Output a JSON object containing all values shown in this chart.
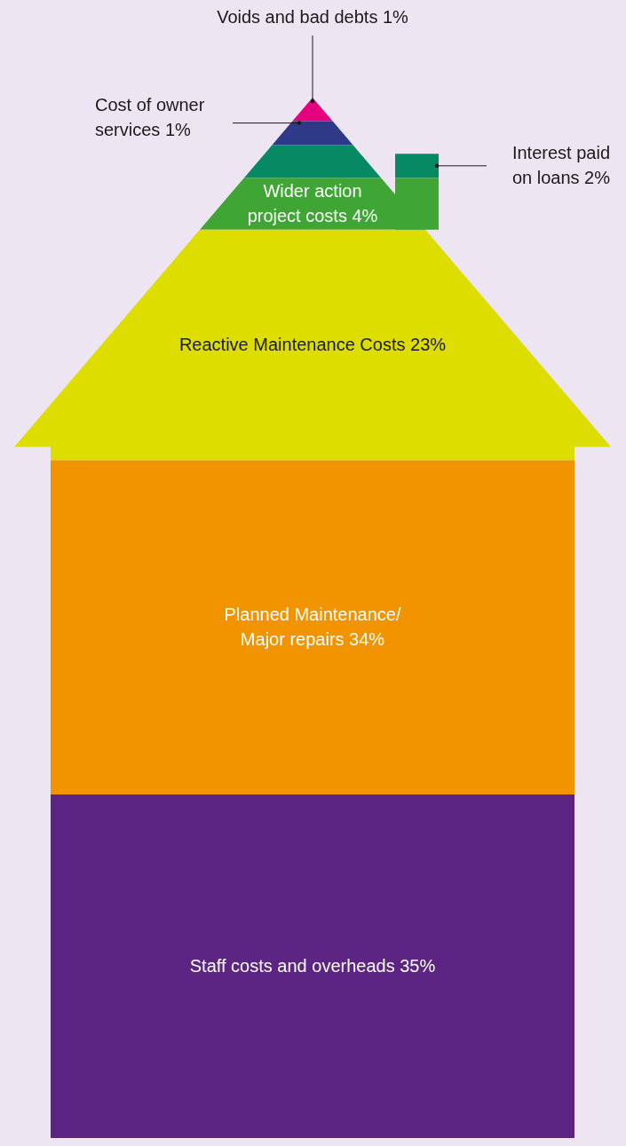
{
  "chart_data": {
    "type": "other",
    "categories": [
      "Voids and bad debts",
      "Cost of owner\nservices",
      "Interest paid\non loans",
      "Wider action\nproject costs",
      "Reactive Maintenance Costs",
      "Planned Maintenance/\nMajor repairs",
      "Staff costs and overheads"
    ],
    "values": [
      1,
      1,
      2,
      4,
      23,
      34,
      35
    ],
    "value_labels": [
      "1%",
      "1%",
      "2%",
      "4%",
      "23%",
      "34%",
      "35%"
    ],
    "colors": [
      "#e5007e",
      "#2e3a87",
      "#078a63",
      "#3fa535",
      "#dedd00",
      "#f29400",
      "#5c2483"
    ]
  }
}
